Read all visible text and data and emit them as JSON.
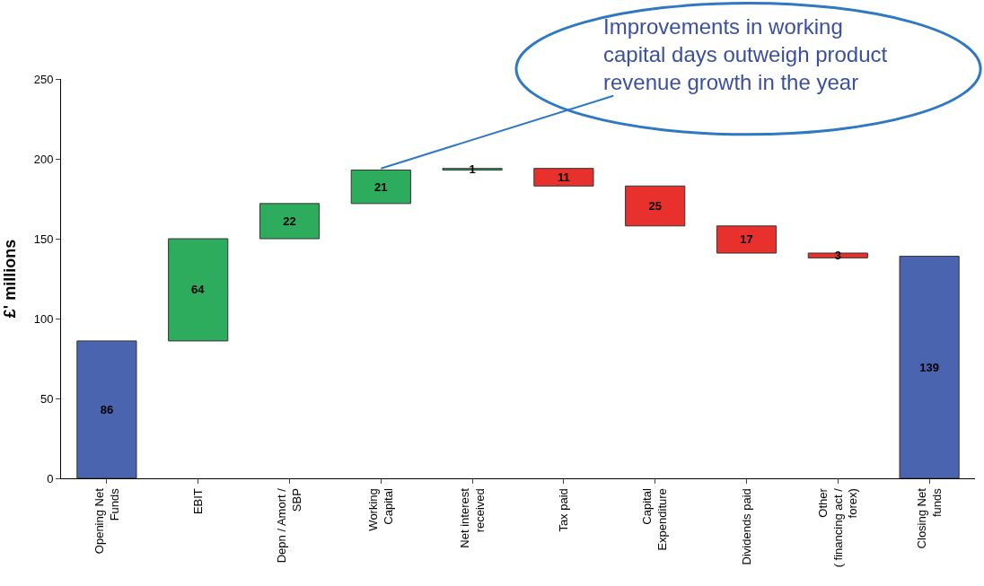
{
  "chart_data": {
    "type": "bar",
    "ylabel": "£' millions",
    "categories": [
      "Opening Net\nFunds",
      "EBIT",
      "Depn / Amort /\nSBP",
      "Working\nCapital",
      "Net interest\nreceived",
      "Tax paid",
      "Capital\nExpenditure",
      "Dividends paid",
      "Other\n( financing act /\nforex)",
      "Closing Net\nfunds"
    ],
    "values": [
      86,
      64,
      22,
      21,
      1,
      11,
      25,
      17,
      3,
      139
    ],
    "base": [
      0,
      86,
      150,
      172,
      193,
      183,
      158,
      141,
      138,
      0
    ],
    "colors": [
      "#4a64b0",
      "#2eac5e",
      "#2eac5e",
      "#2eac5e",
      "#2eac5e",
      "#e8312c",
      "#e8312c",
      "#e8312c",
      "#e8312c",
      "#4a64b0"
    ],
    "ylim": [
      0,
      250
    ],
    "yticks": [
      0,
      50,
      100,
      150,
      200,
      250
    ],
    "legend": false,
    "data_labels": true,
    "annotations": [
      {
        "text": "Improvements in working\ncapital days outweigh product\nrevenue growth in the year",
        "x": "Working\nCapital",
        "y": 194
      }
    ]
  }
}
